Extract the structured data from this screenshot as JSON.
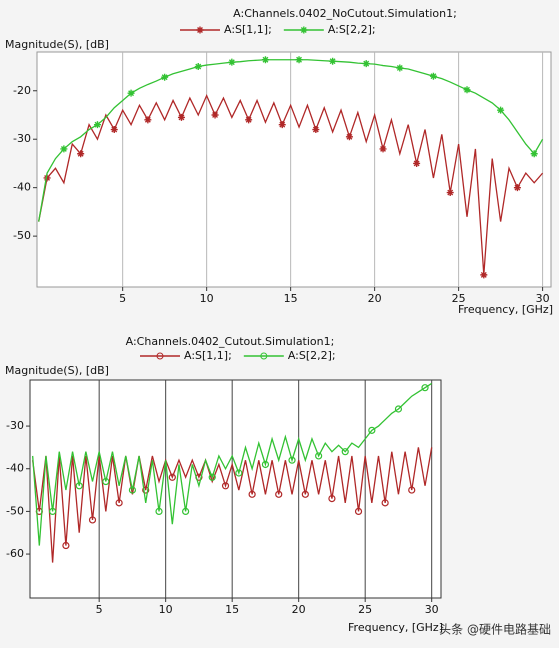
{
  "chart_data": [
    {
      "type": "line",
      "title": "A:Channels.0402_NoCutout.Simulation1;",
      "y_label": "Magnitude(S), [dB]",
      "x_label": "Frequency, [GHz]",
      "marker": "star",
      "grid": "x",
      "xlim": [
        -0.1,
        30.5
      ],
      "xticks": [
        5,
        10,
        15,
        20,
        25,
        30
      ],
      "ylim": [
        -60.5,
        -12
      ],
      "yticks": [
        -20,
        -30,
        -40,
        -50
      ],
      "x": [
        0,
        0.5,
        1,
        1.5,
        2,
        2.5,
        3,
        3.5,
        4,
        4.5,
        5,
        5.5,
        6,
        6.5,
        7,
        7.5,
        8,
        8.5,
        9,
        9.5,
        10,
        10.5,
        11,
        11.5,
        12,
        12.5,
        13,
        13.5,
        14,
        14.5,
        15,
        15.5,
        16,
        16.5,
        17,
        17.5,
        18,
        18.5,
        19,
        19.5,
        20,
        20.5,
        21,
        21.5,
        22,
        22.5,
        23,
        23.5,
        24,
        24.5,
        25,
        25.5,
        26,
        26.5,
        27,
        27.5,
        28,
        28.5,
        29,
        29.5,
        30
      ],
      "series": [
        {
          "name": "A:S[1,1];",
          "color": "#b02828",
          "values": [
            -47,
            -38,
            -36,
            -39,
            -31,
            -33,
            -27,
            -30,
            -25,
            -28,
            -24,
            -27,
            -23,
            -26,
            -22.5,
            -26,
            -22,
            -25.5,
            -21.5,
            -25,
            -21,
            -25,
            -21.5,
            -25.5,
            -22,
            -26,
            -22,
            -26.5,
            -22.5,
            -27,
            -23,
            -27.5,
            -23,
            -28,
            -23.5,
            -28.5,
            -24,
            -29.5,
            -24.5,
            -30.5,
            -25,
            -32,
            -26,
            -33,
            -27,
            -35,
            -28,
            -38,
            -29,
            -41,
            -31,
            -46,
            -32,
            -58,
            -34,
            -47,
            -36,
            -40,
            -37,
            -39,
            -37
          ]
        },
        {
          "name": "A:S[2,2];",
          "color": "#33c233",
          "values": [
            -47,
            -37,
            -34,
            -32,
            -30.5,
            -29.5,
            -28,
            -27,
            -25.5,
            -23.5,
            -22,
            -20.5,
            -19.5,
            -18.7,
            -18,
            -17.2,
            -16.5,
            -16,
            -15.5,
            -15,
            -14.7,
            -14.5,
            -14.3,
            -14.1,
            -14,
            -13.8,
            -13.7,
            -13.6,
            -13.6,
            -13.6,
            -13.6,
            -13.6,
            -13.6,
            -13.7,
            -13.8,
            -13.9,
            -14,
            -14.1,
            -14.3,
            -14.4,
            -14.5,
            -14.8,
            -15,
            -15.3,
            -15.5,
            -16,
            -16.5,
            -17,
            -17.5,
            -18.2,
            -19,
            -19.8,
            -20.5,
            -21.5,
            -22.5,
            -24,
            -26,
            -28.5,
            -31,
            -33,
            -30
          ]
        }
      ]
    },
    {
      "type": "line",
      "title": "A:Channels.0402_Cutout.Simulation1;",
      "y_label": "Magnitude(S), [dB]",
      "x_label": "Frequency, [GHz]",
      "marker": "circle",
      "grid": "x",
      "xlim": [
        -0.2,
        30.7
      ],
      "xticks": [
        5,
        10,
        15,
        20,
        25,
        30
      ],
      "ylim": [
        -70.3,
        -19.2
      ],
      "yticks": [
        -30,
        -40,
        -50,
        -60
      ],
      "x": [
        0,
        0.5,
        1,
        1.5,
        2,
        2.5,
        3,
        3.5,
        4,
        4.5,
        5,
        5.5,
        6,
        6.5,
        7,
        7.5,
        8,
        8.5,
        9,
        9.5,
        10,
        10.5,
        11,
        11.5,
        12,
        12.5,
        13,
        13.5,
        14,
        14.5,
        15,
        15.5,
        16,
        16.5,
        17,
        17.5,
        18,
        18.5,
        19,
        19.5,
        20,
        20.5,
        21,
        21.5,
        22,
        22.5,
        23,
        23.5,
        24,
        24.5,
        25,
        25.5,
        26,
        26.5,
        27,
        27.5,
        28,
        28.5,
        29,
        29.5,
        30
      ],
      "series": [
        {
          "name": "A:S[1,1];",
          "color": "#b02828",
          "values": [
            -38,
            -50,
            -37,
            -62,
            -37,
            -58,
            -37,
            -55,
            -37,
            -52,
            -37,
            -50,
            -37,
            -48,
            -37,
            -46,
            -37,
            -45,
            -37,
            -43,
            -38,
            -42,
            -38,
            -42,
            -38,
            -42,
            -38,
            -43,
            -39,
            -44,
            -39,
            -45,
            -38,
            -46,
            -38,
            -46,
            -38,
            -46,
            -38,
            -46,
            -38,
            -46,
            -38,
            -46,
            -38,
            -47,
            -37,
            -48,
            -37,
            -50,
            -37,
            -48,
            -37,
            -48,
            -36,
            -46,
            -36,
            -45,
            -35,
            -44,
            -35
          ]
        },
        {
          "name": "A:S[2,2];",
          "color": "#33c233",
          "values": [
            -37,
            -58,
            -37,
            -50,
            -36,
            -45,
            -36,
            -44,
            -36,
            -43,
            -36,
            -43,
            -36,
            -44,
            -37,
            -45,
            -37,
            -48,
            -38,
            -50,
            -38,
            -53,
            -39,
            -50,
            -39,
            -44,
            -38,
            -42,
            -37,
            -40,
            -37,
            -41,
            -35,
            -40,
            -34,
            -39,
            -33,
            -38,
            -32.5,
            -38,
            -33,
            -38,
            -33,
            -37,
            -34,
            -36,
            -34.5,
            -36,
            -34,
            -35,
            -33,
            -31,
            -30,
            -28.5,
            -27,
            -26,
            -24.5,
            -23,
            -22,
            -21,
            -20
          ]
        }
      ]
    }
  ],
  "watermark": "头条 @硬件电路基础"
}
